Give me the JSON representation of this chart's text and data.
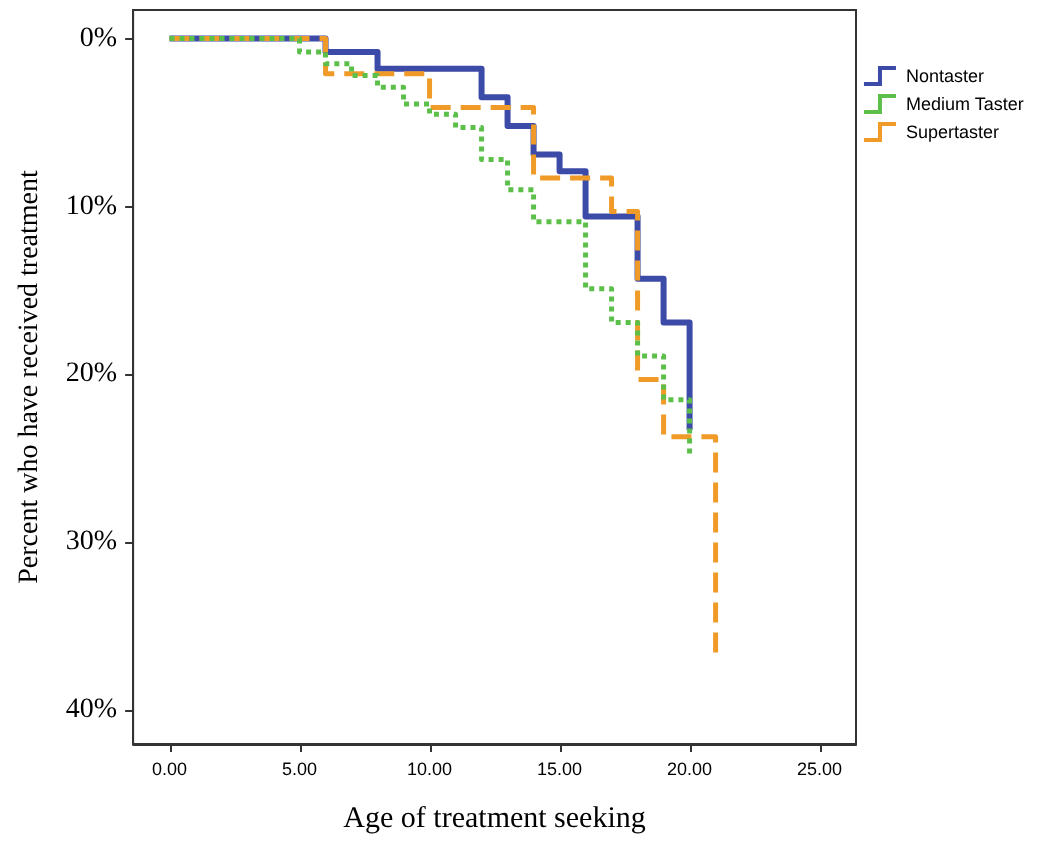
{
  "chart_data": {
    "type": "step",
    "xlabel": "Age of treatment seeking",
    "ylabel": "Percent who have received treatment",
    "xlim": [
      -1.4,
      26.4
    ],
    "ylim": [
      42,
      -1.7
    ],
    "xticks": [
      {
        "value": 0,
        "label": "0.00"
      },
      {
        "value": 5,
        "label": "5.00"
      },
      {
        "value": 10,
        "label": "10.00"
      },
      {
        "value": 15,
        "label": "15.00"
      },
      {
        "value": 20,
        "label": "20.00"
      },
      {
        "value": 25,
        "label": "25.00"
      }
    ],
    "yticks": [
      {
        "value": 0,
        "label": "0%"
      },
      {
        "value": 10,
        "label": "10%"
      },
      {
        "value": 20,
        "label": "20%"
      },
      {
        "value": 30,
        "label": "30%"
      },
      {
        "value": 40,
        "label": "40%"
      }
    ],
    "grid": false,
    "legend": "top right",
    "marker": "none",
    "series": [
      {
        "name": "Nontaster",
        "color": "#3c4aa8",
        "line_style": "solid",
        "x": [
          0,
          6,
          8,
          12,
          13,
          14,
          15,
          16,
          18,
          19,
          20
        ],
        "values": [
          0,
          0.8,
          1.8,
          3.5,
          5.2,
          6.9,
          7.9,
          10.6,
          14.3,
          16.9,
          23.3
        ]
      },
      {
        "name": "Medium Taster",
        "color": "#5cbf4a",
        "line_style": "dotted",
        "x": [
          0,
          5,
          6,
          7,
          8,
          9,
          10,
          11,
          12,
          13,
          14,
          16,
          17,
          18,
          19,
          20
        ],
        "values": [
          0,
          0.8,
          1.5,
          2.2,
          2.9,
          3.9,
          4.5,
          5.3,
          7.2,
          9.0,
          10.9,
          14.9,
          16.9,
          18.9,
          21.5,
          25.0
        ]
      },
      {
        "name": "Supertaster",
        "color": "#f09a28",
        "line_style": "dashed",
        "x": [
          0,
          6,
          10,
          14,
          17,
          18,
          19,
          21
        ],
        "values": [
          0,
          2.1,
          4.1,
          8.3,
          10.3,
          20.3,
          23.7,
          36.9
        ]
      }
    ]
  }
}
